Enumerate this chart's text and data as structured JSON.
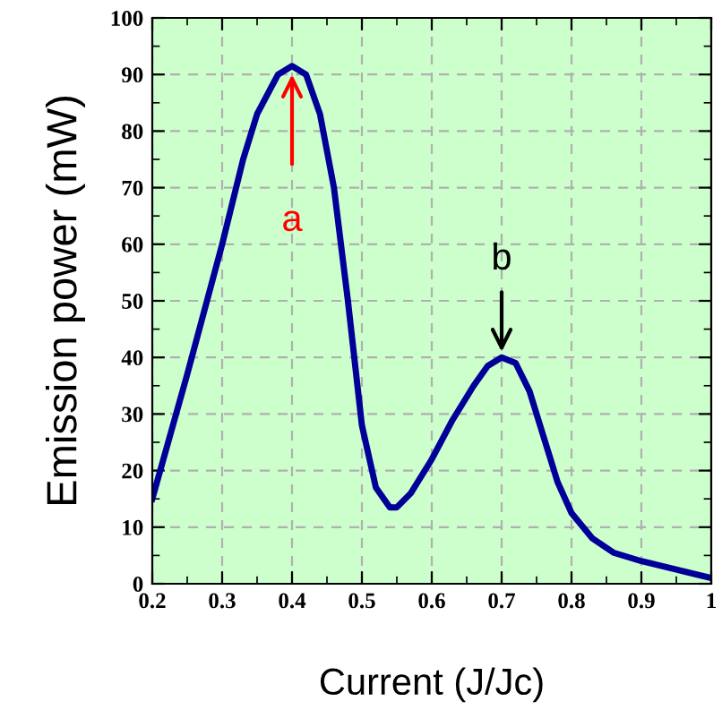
{
  "chart_data": {
    "type": "line",
    "xlabel": "Current (J/Jc)",
    "ylabel": "Emission power (mW)",
    "x": [
      0.2,
      0.25,
      0.3,
      0.33,
      0.35,
      0.38,
      0.4,
      0.42,
      0.44,
      0.46,
      0.48,
      0.5,
      0.52,
      0.54,
      0.55,
      0.57,
      0.6,
      0.63,
      0.66,
      0.68,
      0.7,
      0.72,
      0.74,
      0.76,
      0.78,
      0.8,
      0.83,
      0.86,
      0.9,
      0.95,
      1.0
    ],
    "series": [
      {
        "color": "#000099",
        "values": [
          15,
          37,
          60,
          75,
          83,
          90,
          91.5,
          90,
          83,
          70,
          50,
          28,
          17,
          13.5,
          13.5,
          16,
          22,
          29,
          35,
          38.5,
          40,
          39,
          34,
          26,
          18,
          12.5,
          8,
          5.5,
          4,
          2.5,
          1
        ]
      }
    ],
    "xlim": [
      0.2,
      1.0
    ],
    "ylim": [
      0,
      100
    ],
    "xticks": [
      0.2,
      0.3,
      0.4,
      0.5,
      0.6,
      0.7,
      0.8,
      0.9,
      {
        "value": 1.0,
        "label": "1"
      }
    ],
    "yticks": [
      0,
      10,
      20,
      30,
      40,
      50,
      60,
      70,
      80,
      90,
      100
    ],
    "grid": true,
    "line_style": "solid",
    "marker": "none",
    "annotations": [
      {
        "text": "a",
        "x": 0.4,
        "y": 90
      },
      {
        "text": "b",
        "x": 0.7,
        "y": 41
      }
    ]
  }
}
